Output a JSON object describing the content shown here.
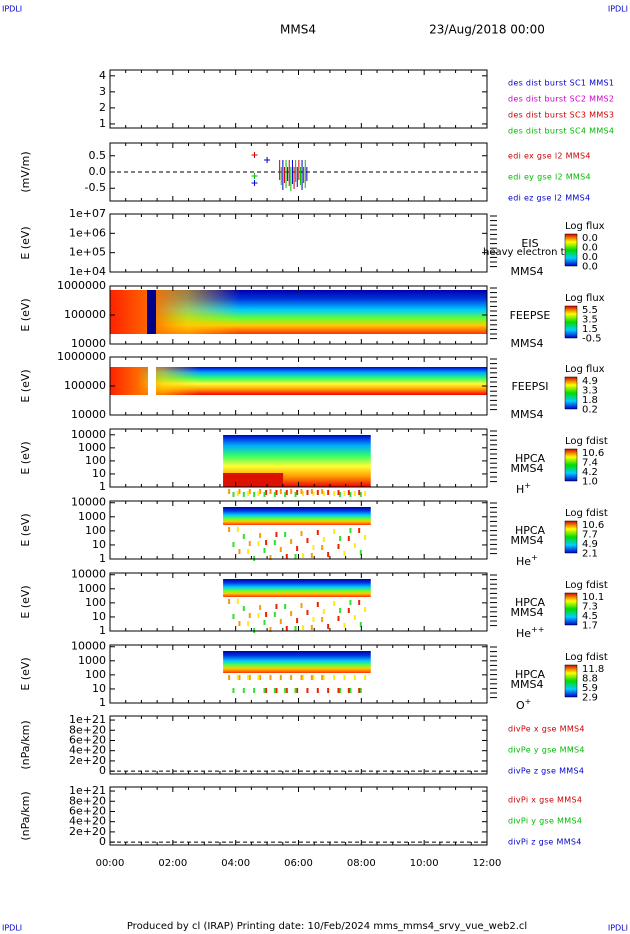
{
  "header": {
    "corner_tl": "IPDLI",
    "corner_tr": "IPDLI",
    "corner_bl": "IPDLI",
    "corner_br": "IPDLI",
    "spacecraft": "MMS4",
    "datetime": "23/Aug/2018 00:00"
  },
  "panels": [
    {
      "ylabel": null,
      "yticks": [
        "4",
        "3",
        "2",
        "1"
      ],
      "legend": [
        {
          "text": "des dist burst SC1 MMS1",
          "color": "#0000cc"
        },
        {
          "text": "des dist burst SC2 MMS2",
          "color": "#cc00cc"
        },
        {
          "text": "des dist burst SC3 MMS3",
          "color": "#cc0000"
        },
        {
          "text": "des dist burst SC4 MMS4",
          "color": "#00bb00"
        }
      ]
    },
    {
      "ylabel": "(mV/m)",
      "yticks": [
        "0.5",
        "0.0",
        "-0.5"
      ],
      "dashed_zero": true,
      "legend": [
        {
          "text": "edi ex gse l2 MMS4",
          "color": "#cc0000"
        },
        {
          "text": "edi ey gse l2 MMS4",
          "color": "#00bb00"
        },
        {
          "text": "edi ez gse l2 MMS4",
          "color": "#0000cc"
        }
      ]
    },
    {
      "ylabel": "E (eV)",
      "yticks": [
        "1e+07",
        "1e+06",
        "1e+05",
        "1e+04"
      ],
      "instrument": "EIS",
      "spacecraft": "MMS4",
      "overlay": "heavy electron to",
      "cbar_title": "Log flux",
      "cbar_labels": [
        "0.0",
        "0.0",
        "0.0",
        "0.0"
      ]
    },
    {
      "ylabel": "E (eV)",
      "yticks": [
        "1000000",
        "100000",
        "10000"
      ],
      "instrument": "FEEPSE",
      "spacecraft": "MMS4",
      "cbar_title": "Log flux",
      "cbar_labels": [
        "5.5",
        "3.5",
        "1.5",
        "-0.5"
      ],
      "spec": "feepse"
    },
    {
      "ylabel": "E (eV)",
      "yticks": [
        "1000000",
        "100000",
        "10000"
      ],
      "instrument": "FEEPSI",
      "spacecraft": "MMS4",
      "cbar_title": "Log flux",
      "cbar_labels": [
        "4.9",
        "3.3",
        "1.8",
        "0.2"
      ],
      "spec": "feepsi"
    },
    {
      "ylabel": "E (eV)",
      "yticks": [
        "10000",
        "1000",
        "100",
        "10",
        "1"
      ],
      "instrument": "HPCA",
      "spacecraft": "MMS4",
      "species": "H",
      "charge": "+",
      "cbar_title": "Log fdist",
      "cbar_labels": [
        "10.6",
        "7.4",
        "4.2",
        "1.0"
      ],
      "spec": "hplus"
    },
    {
      "ylabel": "E (eV)",
      "yticks": [
        "10000",
        "1000",
        "100",
        "10",
        "1"
      ],
      "instrument": "HPCA",
      "spacecraft": "MMS4",
      "species": "He",
      "charge": "+",
      "cbar_title": "Log fdist",
      "cbar_labels": [
        "10.6",
        "7.7",
        "4.9",
        "2.1"
      ],
      "spec": "heplus"
    },
    {
      "ylabel": "E (eV)",
      "yticks": [
        "10000",
        "1000",
        "100",
        "10",
        "1"
      ],
      "instrument": "HPCA",
      "spacecraft": "MMS4",
      "species": "He",
      "charge": "++",
      "cbar_title": "Log fdist",
      "cbar_labels": [
        "10.1",
        "7.3",
        "4.5",
        "1.7"
      ],
      "spec": "heplus"
    },
    {
      "ylabel": "E (eV)",
      "yticks": [
        "10000",
        "1000",
        "100",
        "10",
        "1"
      ],
      "instrument": "HPCA",
      "spacecraft": "MMS4",
      "species": "O",
      "charge": "+",
      "cbar_title": "Log fdist",
      "cbar_labels": [
        "11.8",
        "8.8",
        "5.9",
        "2.9"
      ],
      "spec": "oplus"
    },
    {
      "ylabel": "(nPa/km)",
      "yticks": [
        "1e+21",
        "8e+20",
        "6e+20",
        "4e+20",
        "2e+20",
        "0"
      ],
      "dashed_zero": true,
      "legend": [
        {
          "text": "divPe x gse MMS4",
          "color": "#cc0000"
        },
        {
          "text": "divPe y gse MMS4",
          "color": "#00bb00"
        },
        {
          "text": "divPe z gse MMS4",
          "color": "#0000cc"
        }
      ]
    },
    {
      "ylabel": "(nPa/km)",
      "yticks": [
        "1e+21",
        "8e+20",
        "6e+20",
        "4e+20",
        "2e+20",
        "0"
      ],
      "dashed_zero": true,
      "legend": [
        {
          "text": "divPi x gse MMS4",
          "color": "#cc0000"
        },
        {
          "text": "divPi y gse MMS4",
          "color": "#00bb00"
        },
        {
          "text": "divPi z gse MMS4",
          "color": "#0000cc"
        }
      ]
    }
  ],
  "xticks": [
    "00:00",
    "02:00",
    "04:00",
    "06:00",
    "08:00",
    "10:00",
    "12:00"
  ],
  "footer": "Produced by cl (IRAP)   Printing date: 10/Feb/2024   mms_mms4_srvy_vue_web2.cl"
}
